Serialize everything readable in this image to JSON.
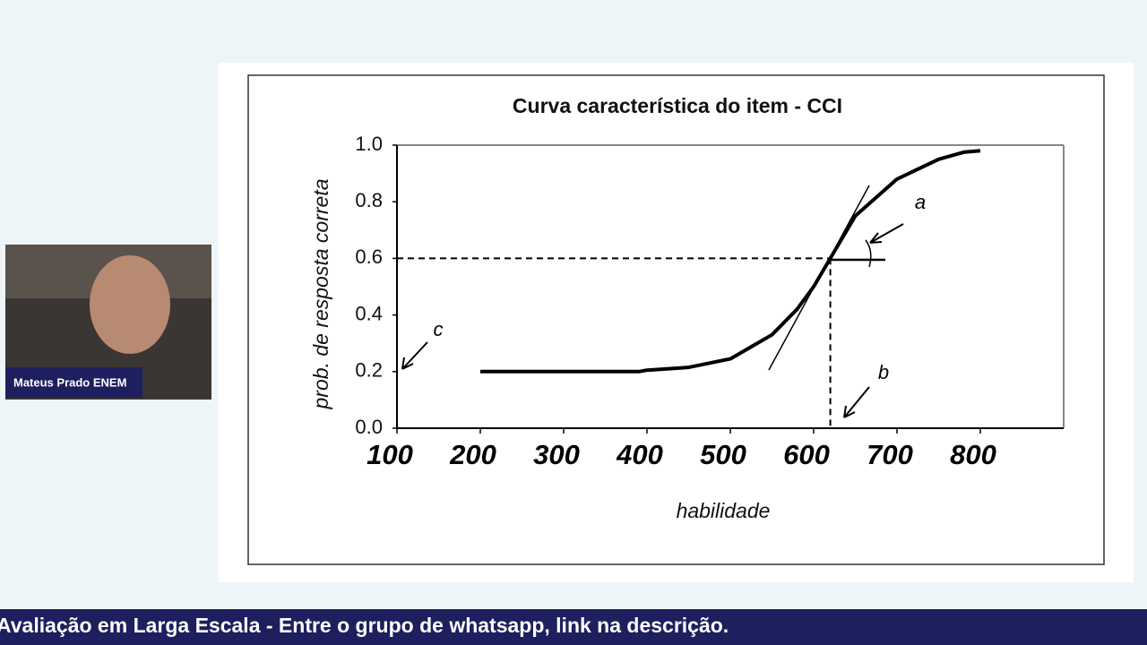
{
  "webcam": {
    "name": "Mateus Prado ENEM"
  },
  "banner": {
    "text": "Avaliação em Larga Escala - Entre o grupo de whatsapp, link na descrição."
  },
  "chart_data": {
    "type": "line",
    "title": "Curva característica do item - CCI",
    "x_label": "habilidade",
    "y_label": "prob. de resposta correta",
    "x": [
      200,
      300,
      390,
      400,
      450,
      500,
      550,
      580,
      600,
      620,
      650,
      700,
      750,
      780,
      800
    ],
    "values": [
      0.2,
      0.2,
      0.2,
      0.205,
      0.215,
      0.245,
      0.33,
      0.42,
      0.5,
      0.6,
      0.75,
      0.88,
      0.95,
      0.975,
      0.98
    ],
    "color": "#000000",
    "xlim": [
      100,
      900
    ],
    "xticks": [
      100,
      200,
      300,
      400,
      500,
      600,
      700,
      800
    ],
    "ylim": [
      0,
      1
    ],
    "yticks": [
      {
        "value": 0,
        "label": "0.0"
      },
      0.2,
      0.4,
      0.6,
      0.8,
      {
        "value": 1,
        "label": "1.0"
      }
    ],
    "reference": {
      "x": 620,
      "y": 0.6
    },
    "annotations": [
      "a",
      "b",
      "c"
    ]
  }
}
